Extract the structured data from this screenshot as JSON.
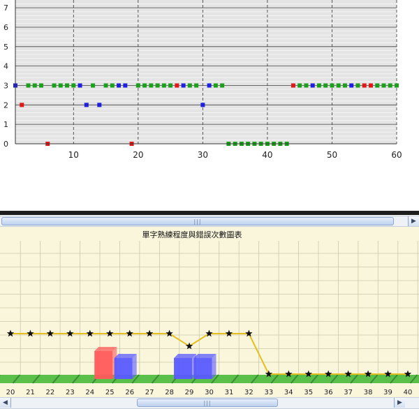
{
  "top_chart": {
    "type": "scatter",
    "y_axis": {
      "min": 0,
      "max": 7,
      "ticks": [
        "0",
        "1",
        "2",
        "3",
        "4",
        "5",
        "6",
        "7"
      ]
    },
    "x_axis": {
      "min": 1,
      "max": 60,
      "ticks": [
        "10",
        "20",
        "30",
        "40",
        "50",
        "60"
      ],
      "tick_values": [
        10,
        20,
        30,
        40,
        50,
        60
      ]
    },
    "grid": true,
    "colors": {
      "green": "#1aa01a",
      "blue": "#1f1fe0",
      "red": "#e01818",
      "background": "#e4e4e4"
    },
    "points": {
      "x": [
        1,
        2,
        3,
        4,
        5,
        6,
        7,
        8,
        9,
        10,
        11,
        12,
        13,
        14,
        15,
        16,
        17,
        18,
        19,
        20,
        21,
        22,
        23,
        24,
        25,
        26,
        27,
        28,
        29,
        30,
        31,
        32,
        33,
        34,
        35,
        36,
        37,
        38,
        39,
        40,
        41,
        42,
        43,
        44,
        45,
        46,
        47,
        48,
        49,
        50,
        51,
        52,
        53,
        54,
        55,
        56,
        57,
        58,
        59,
        60
      ],
      "y": [
        3,
        2,
        3,
        3,
        3,
        0,
        3,
        3,
        3,
        3,
        3,
        2,
        3,
        2,
        3,
        3,
        3,
        3,
        0,
        3,
        3,
        3,
        3,
        3,
        3,
        3,
        3,
        3,
        3,
        2,
        3,
        3,
        3,
        0,
        0,
        0,
        0,
        0,
        0,
        0,
        0,
        0,
        0,
        3,
        3,
        3,
        3,
        3,
        3,
        3,
        3,
        3,
        3,
        3,
        3,
        3,
        3,
        3,
        3,
        3
      ],
      "color": [
        "blue",
        "red",
        "green",
        "green",
        "green",
        "red",
        "green",
        "green",
        "green",
        "green",
        "blue",
        "blue",
        "green",
        "blue",
        "green",
        "green",
        "blue",
        "blue",
        "red",
        "green",
        "green",
        "green",
        "green",
        "green",
        "green",
        "red",
        "blue",
        "green",
        "green",
        "blue",
        "blue",
        "green",
        "green",
        "green",
        "green",
        "green",
        "green",
        "green",
        "green",
        "green",
        "green",
        "green",
        "green",
        "red",
        "green",
        "green",
        "blue",
        "green",
        "green",
        "green",
        "green",
        "green",
        "blue",
        "green",
        "red",
        "red",
        "green",
        "green",
        "green",
        "green"
      ]
    }
  },
  "bottom_chart": {
    "type": "bar",
    "title": "單字熟練程度與錯誤次數圖表",
    "categories": [
      "20",
      "21",
      "22",
      "23",
      "24",
      "25",
      "26",
      "27",
      "28",
      "29",
      "30",
      "31",
      "32",
      "33",
      "34",
      "35",
      "36",
      "37",
      "38",
      "39",
      "40"
    ],
    "proficiency_line": [
      2,
      2,
      2,
      2,
      2,
      2,
      2,
      2,
      2,
      1,
      2,
      2,
      2,
      -1,
      -1,
      -1,
      -1,
      -1,
      -1,
      -1,
      -1
    ],
    "error_bars": [
      {
        "category": "25",
        "value": 2,
        "color": "red"
      },
      {
        "category": "26",
        "value": 1.5,
        "color": "blue"
      },
      {
        "category": "29",
        "value": 1.5,
        "color": "blue"
      },
      {
        "category": "30",
        "value": 1.5,
        "color": "blue"
      }
    ],
    "colors": {
      "background": "#faf6dc",
      "grid": "#cbc9a8",
      "line": "#e6bf1e",
      "ground": "#5ac04a",
      "red": "#ff5a5a",
      "blue": "#5a5aff"
    }
  }
}
